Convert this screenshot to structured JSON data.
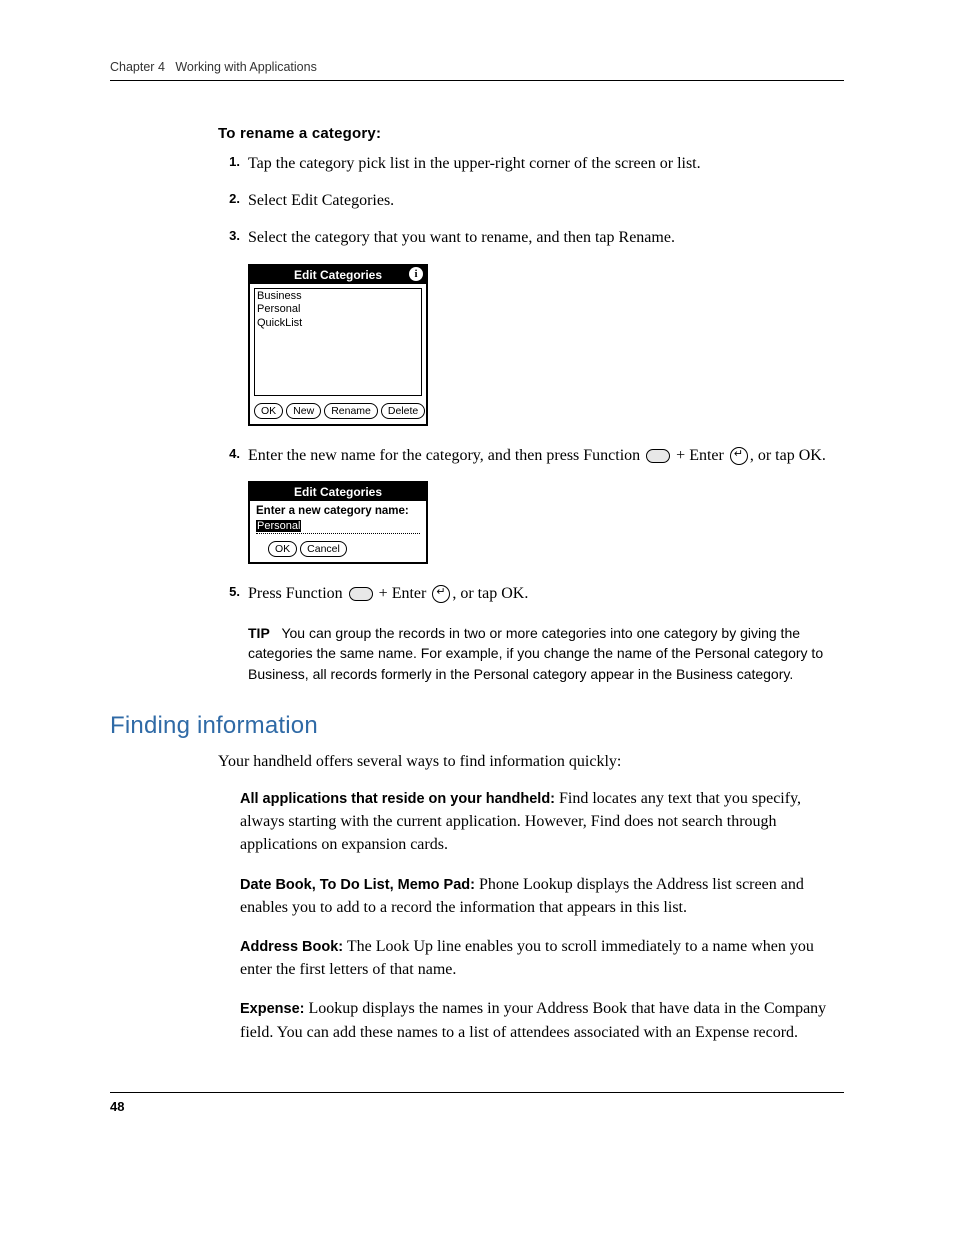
{
  "header": {
    "chapter_label": "Chapter 4",
    "chapter_title": "Working with Applications"
  },
  "procedure": {
    "title": "To rename a category:",
    "steps": [
      {
        "num": "1.",
        "text": "Tap the category pick list in the upper-right corner of the screen or list."
      },
      {
        "num": "2.",
        "text": "Select Edit Categories."
      },
      {
        "num": "3.",
        "text": "Select the category that you want to rename, and then tap Rename."
      }
    ],
    "step4": {
      "num": "4.",
      "pre": "Enter the new name for the category, and then press Function ",
      "mid": " + Enter ",
      "post": ", or tap OK."
    },
    "step5": {
      "num": "5.",
      "pre": "Press Function ",
      "mid": " + Enter ",
      "post": ", or tap OK."
    }
  },
  "palm1": {
    "title": "Edit Categories",
    "items": [
      "Business",
      "Personal",
      "QuickList"
    ],
    "buttons": [
      "OK",
      "New",
      "Rename",
      "Delete"
    ]
  },
  "palm2": {
    "title": "Edit Categories",
    "prompt": "Enter a new category name:",
    "value": "Personal",
    "buttons": [
      "OK",
      "Cancel"
    ]
  },
  "tip": {
    "label": "TIP",
    "text": "You can group the records in two or more categories into one category by giving the categories the same name. For example, if you change the name of the Personal category to Business, all records formerly in the Personal category appear in the Business category."
  },
  "section2": {
    "title": "Finding information",
    "intro": "Your handheld offers several ways to find information quickly:",
    "items": [
      {
        "lead": "All applications that reside on your handheld:",
        "body": " Find locates any text that you specify, always starting with the current application. However, Find does not search through applications on expansion cards."
      },
      {
        "lead": "Date Book, To Do List, Memo Pad:",
        "body": " Phone Lookup displays the Address list screen and enables you to add to a record the information that appears in this list."
      },
      {
        "lead": "Address Book:",
        "body": " The Look Up line enables you to scroll immediately to a name when you enter the first letters of that name."
      },
      {
        "lead": "Expense:",
        "body": " Lookup displays the names in your Address Book that have data in the Company field. You can add these names to a list of attendees associated with an Expense record."
      }
    ]
  },
  "footer": {
    "page": "48"
  }
}
